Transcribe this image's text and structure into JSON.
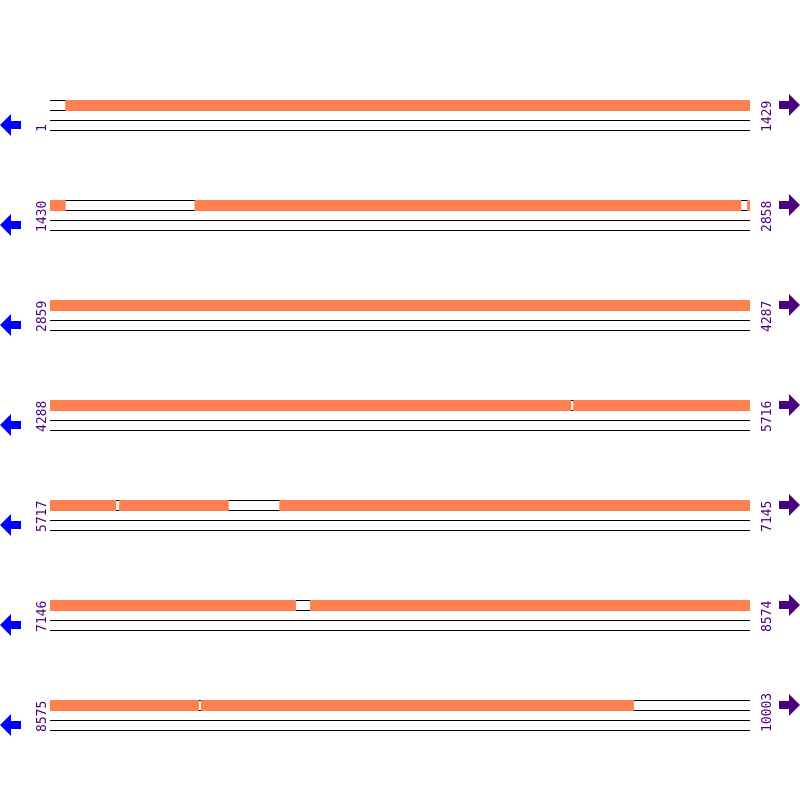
{
  "colors": {
    "segment": "#ff7f50",
    "line": "#000000",
    "left_arrow": "#0000ff",
    "right_arrow": "#4b0082",
    "label": "#4b0082"
  },
  "icons": {
    "left": "arrow-left-icon",
    "right": "arrow-right-icon"
  },
  "rows": [
    {
      "start": "1",
      "end": "1429",
      "s": 1,
      "e": 1429,
      "segments": [
        [
          32,
          1429
        ]
      ]
    },
    {
      "start": "1430",
      "end": "2858",
      "s": 1430,
      "e": 2858,
      "segments": [
        [
          1430,
          1461
        ],
        [
          1725,
          2840
        ],
        [
          2853,
          2858
        ]
      ]
    },
    {
      "start": "2859",
      "end": "4287",
      "s": 2859,
      "e": 4287,
      "segments": [
        [
          2859,
          4287
        ]
      ]
    },
    {
      "start": "4288",
      "end": "5716",
      "s": 4288,
      "e": 5716,
      "segments": [
        [
          4288,
          5351
        ],
        [
          5356,
          5716
        ]
      ]
    },
    {
      "start": "5717",
      "end": "7145",
      "s": 5717,
      "e": 7145,
      "segments": [
        [
          5717,
          5851
        ],
        [
          5858,
          6081
        ],
        [
          6185,
          7145
        ]
      ]
    },
    {
      "start": "7146",
      "end": "8574",
      "s": 7146,
      "e": 8574,
      "segments": [
        [
          7146,
          7647
        ],
        [
          7677,
          8574
        ]
      ]
    },
    {
      "start": "8575",
      "end": "10003",
      "s": 8575,
      "e": 10003,
      "segments": [
        [
          8575,
          8878
        ],
        [
          8883,
          9766
        ]
      ]
    }
  ]
}
